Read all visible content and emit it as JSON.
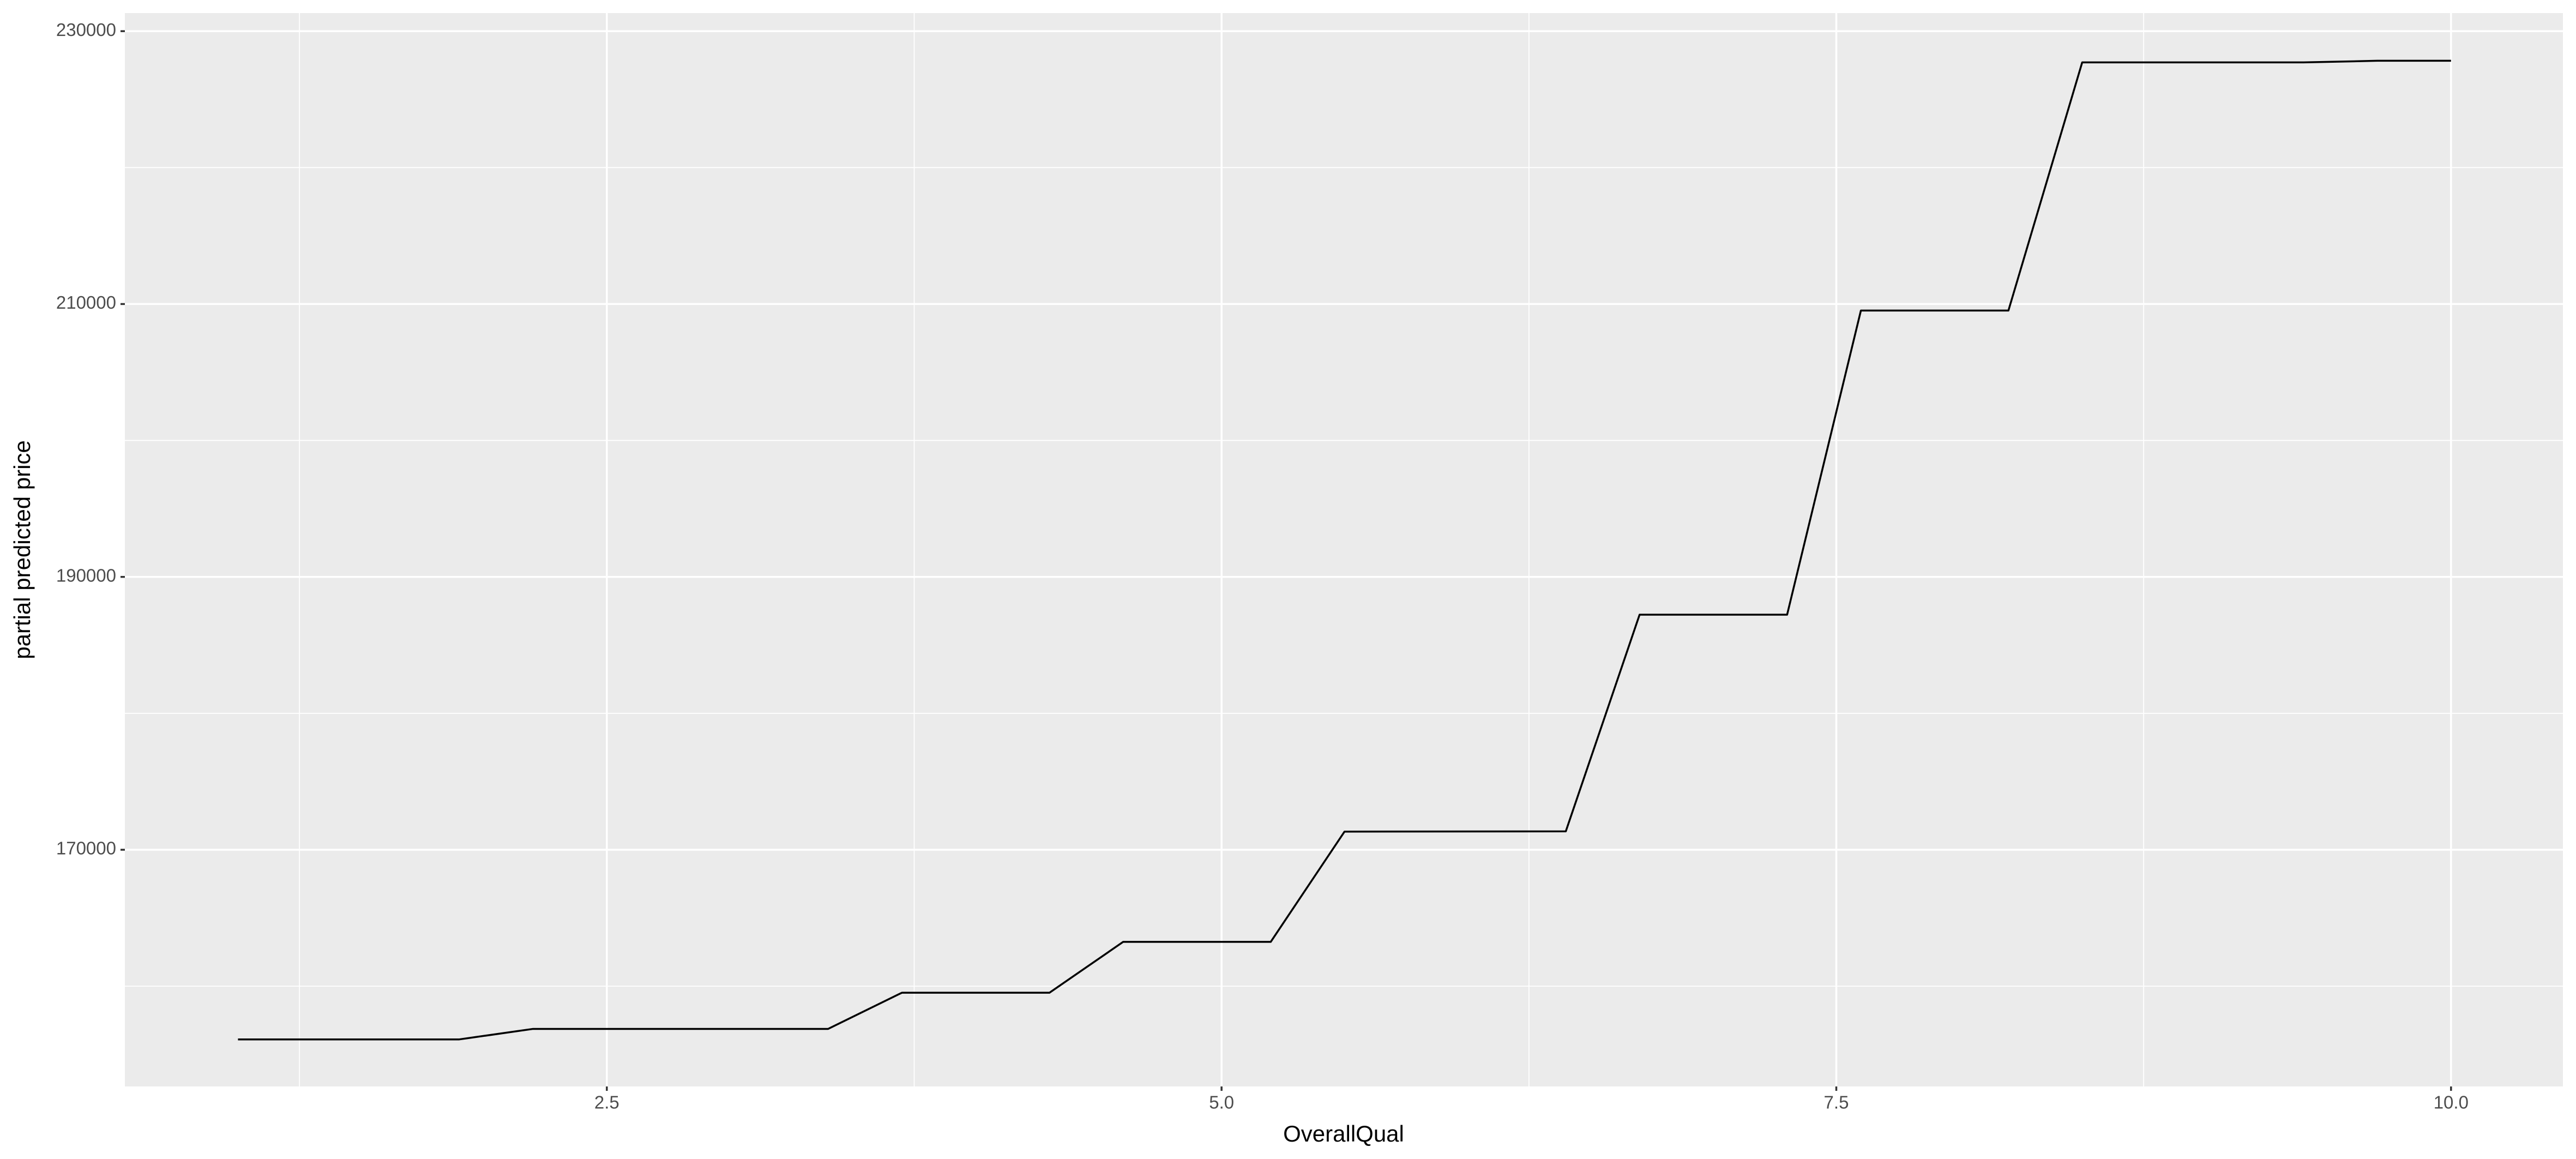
{
  "chart_data": {
    "type": "line",
    "x_label": "OverallQual",
    "y_label": "partial predicted price",
    "x": [
      1,
      1.9,
      2.2,
      3.4,
      3.7,
      4.3,
      4.6,
      5.2,
      5.5,
      6.4,
      6.7,
      7.3,
      7.6,
      8.2,
      8.5,
      9.4,
      9.7,
      10
    ],
    "series": [
      {
        "color": "#000000",
        "values": [
          156100,
          156100,
          156870,
          156870,
          159520,
          159520,
          163250,
          163250,
          171330,
          171350,
          187230,
          187230,
          209520,
          209520,
          227710,
          227710,
          227830,
          227830
        ]
      }
    ],
    "xlim": [
      0.54,
      10.455
    ],
    "ylim": [
      152650,
      231325
    ],
    "xticks": [
      2.5,
      {
        "value": 5,
        "label": "5.0"
      },
      7.5,
      {
        "value": 10,
        "label": "10.0"
      }
    ],
    "yticks": [
      170000,
      190000,
      210000,
      230000
    ],
    "x_minor_grid": [
      1.25,
      3.75,
      6.25,
      8.75
    ],
    "y_minor_grid": [
      160000,
      180000,
      200000,
      220000
    ],
    "grid": true,
    "panel_color": "#ebebeb"
  }
}
